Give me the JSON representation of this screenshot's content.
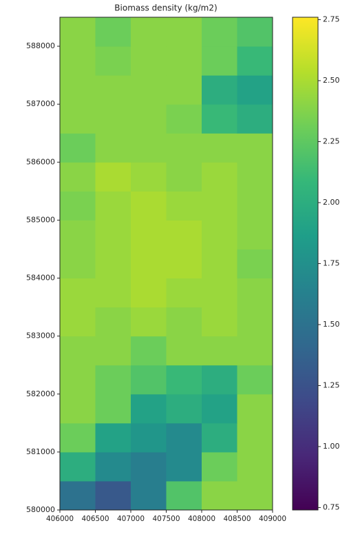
{
  "chart_data": {
    "type": "heatmap",
    "title": "Biomass density (kg/m2)",
    "colormap": "viridis",
    "x": [
      406250,
      406750,
      407250,
      407750,
      408250,
      408750
    ],
    "y": [
      580250,
      580750,
      581250,
      581750,
      582250,
      582750,
      583250,
      583750,
      584250,
      584750,
      585250,
      585750,
      586250,
      586750,
      587250,
      587750,
      588250
    ],
    "z": [
      [
        1.5,
        1.3,
        1.6,
        2.2,
        2.4,
        2.4
      ],
      [
        2.0,
        1.7,
        1.6,
        1.7,
        2.3,
        2.4
      ],
      [
        2.3,
        1.9,
        1.8,
        1.7,
        2.0,
        2.4
      ],
      [
        2.4,
        2.3,
        1.9,
        2.0,
        1.9,
        2.4
      ],
      [
        2.4,
        2.3,
        2.2,
        2.1,
        2.0,
        2.3
      ],
      [
        2.4,
        2.4,
        2.3,
        2.4,
        2.4,
        2.4
      ],
      [
        2.45,
        2.4,
        2.45,
        2.4,
        2.45,
        2.4
      ],
      [
        2.45,
        2.45,
        2.5,
        2.45,
        2.45,
        2.4
      ],
      [
        2.4,
        2.45,
        2.5,
        2.5,
        2.45,
        2.35
      ],
      [
        2.4,
        2.45,
        2.5,
        2.5,
        2.45,
        2.4
      ],
      [
        2.35,
        2.45,
        2.5,
        2.45,
        2.45,
        2.4
      ],
      [
        2.4,
        2.5,
        2.45,
        2.4,
        2.45,
        2.4
      ],
      [
        2.3,
        2.4,
        2.4,
        2.4,
        2.4,
        2.4
      ],
      [
        2.4,
        2.4,
        2.4,
        2.35,
        2.1,
        2.0
      ],
      [
        2.4,
        2.4,
        2.4,
        2.4,
        2.0,
        1.9
      ],
      [
        2.4,
        2.35,
        2.4,
        2.4,
        2.3,
        2.1
      ],
      [
        2.4,
        2.3,
        2.4,
        2.4,
        2.3,
        2.2
      ]
    ],
    "xlim": [
      406000,
      409000
    ],
    "xticks": [
      406000,
      406500,
      407000,
      407500,
      408000,
      408500,
      409000
    ],
    "ylim": [
      580000,
      588500
    ],
    "yticks": [
      580000,
      581000,
      582000,
      583000,
      584000,
      585000,
      586000,
      587000,
      588000
    ],
    "clim": [
      0.74,
      2.76
    ],
    "cticks": [
      0.75,
      {
        "value": 1.0,
        "label": "1.00"
      },
      1.25,
      {
        "value": 1.5,
        "label": "1.50"
      },
      1.75,
      {
        "value": 2.0,
        "label": "2.00"
      },
      2.25,
      {
        "value": 2.5,
        "label": "2.50"
      },
      2.75
    ]
  }
}
